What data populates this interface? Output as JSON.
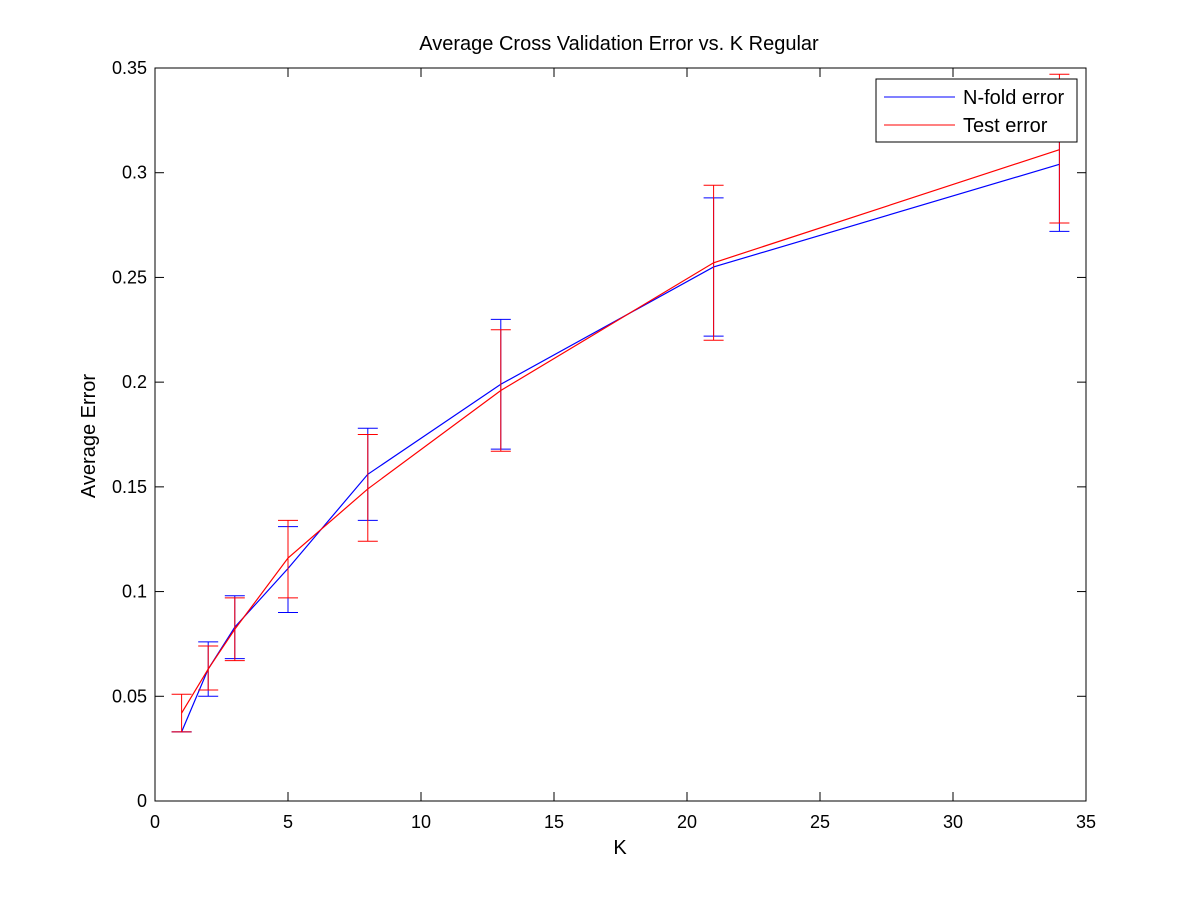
{
  "chart_data": {
    "type": "line",
    "title": "Average Cross Validation Error vs. K Regular",
    "xlabel": "K",
    "ylabel": "Average Error",
    "xlim": [
      0,
      35
    ],
    "ylim": [
      0,
      0.35
    ],
    "xticks": [
      0,
      5,
      10,
      15,
      20,
      25,
      30,
      35
    ],
    "xtick_labels": [
      "0",
      "5",
      "10",
      "15",
      "20",
      "25",
      "30",
      "35"
    ],
    "yticks": [
      0,
      0.05,
      0.1,
      0.15,
      0.2,
      0.25,
      0.3,
      0.35
    ],
    "ytick_labels": [
      "0",
      "0.05",
      "0.1",
      "0.15",
      "0.2",
      "0.25",
      "0.3",
      "0.35"
    ],
    "grid": false,
    "legend_position": "top-right",
    "x": [
      1,
      2,
      3,
      5,
      8,
      13,
      21,
      34
    ],
    "series": [
      {
        "name": "N-fold error",
        "color": "#0000ff",
        "values": [
          0.033,
          0.063,
          0.083,
          0.111,
          0.156,
          0.199,
          0.255,
          0.304
        ],
        "err_low": [
          0.033,
          0.05,
          0.068,
          0.09,
          0.134,
          0.168,
          0.222,
          0.272
        ],
        "err_high": [
          0.033,
          0.076,
          0.098,
          0.131,
          0.178,
          0.23,
          0.288,
          0.336
        ]
      },
      {
        "name": "Test error",
        "color": "#ff0000",
        "values": [
          0.042,
          0.063,
          0.082,
          0.116,
          0.149,
          0.196,
          0.257,
          0.311
        ],
        "err_low": [
          0.033,
          0.053,
          0.067,
          0.097,
          0.124,
          0.167,
          0.22,
          0.276
        ],
        "err_high": [
          0.051,
          0.074,
          0.097,
          0.134,
          0.175,
          0.225,
          0.294,
          0.347
        ]
      }
    ]
  }
}
